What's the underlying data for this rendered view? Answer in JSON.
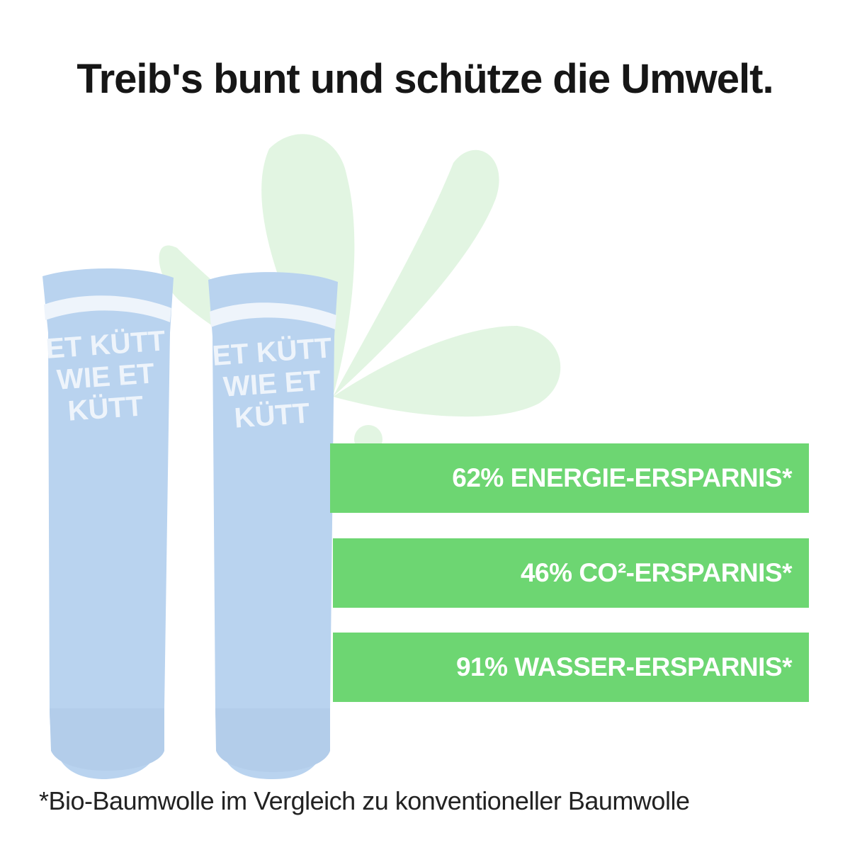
{
  "headline": "Treib's bunt und schütze die Umwelt.",
  "product": {
    "sock_print": [
      "ET KÜTT",
      "WIE ET",
      "KÜTT"
    ],
    "sock_color": "#b9d3ef"
  },
  "benefits": [
    {
      "label": "62% ENERGIE-ERSPARNIS*"
    },
    {
      "label": "46% CO²-ERSPARNIS*"
    },
    {
      "label": "91% WASSER-ERSPARNIS*"
    }
  ],
  "footnote": "*Bio-Baumwolle im Vergleich zu konventioneller Baumwolle",
  "colors": {
    "accent_green": "#6dd672",
    "splash_green": "#e2f5e2",
    "text": "#161616"
  }
}
